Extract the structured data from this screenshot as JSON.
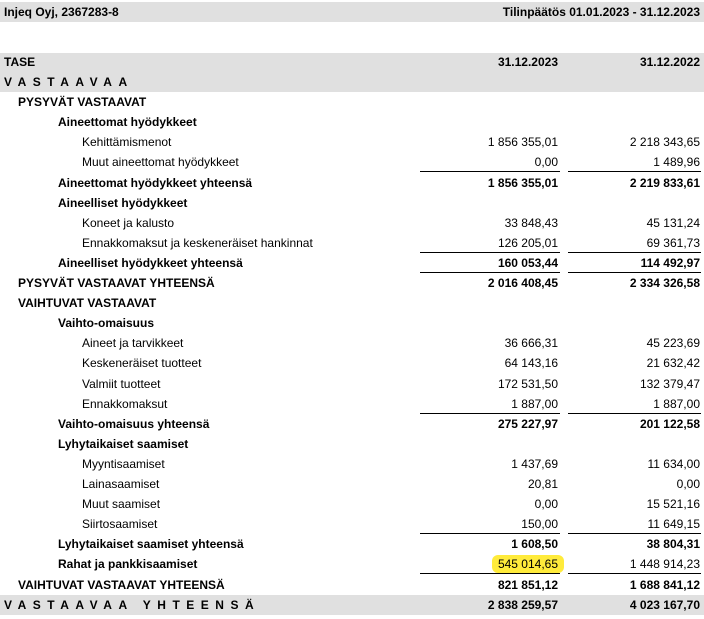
{
  "header": {
    "company": "Injeq Oyj, 2367283-8",
    "period": "Tilinpäätös 01.01.2023 - 31.12.2023"
  },
  "table": {
    "columns": [
      "TASE",
      "31.12.2023",
      "31.12.2022"
    ],
    "rows": [
      [
        "VASTAAVAA"
      ],
      [
        "PYSYVÄT VASTAAVAT"
      ],
      [
        "Aineettomat hyödykkeet"
      ],
      [
        "Kehittämismenot",
        "1 856 355,01",
        "2 218 343,65"
      ],
      [
        "Muut aineettomat hyödykkeet",
        "0,00",
        "1 489,96"
      ],
      [
        "Aineettomat hyödykkeet yhteensä",
        "1 856 355,01",
        "2 219 833,61"
      ],
      [
        "Aineelliset hyödykkeet"
      ],
      [
        "Koneet ja kalusto",
        "33 848,43",
        "45 131,24"
      ],
      [
        "Ennakkomaksut ja keskeneräiset hankinnat",
        "126 205,01",
        "69 361,73"
      ],
      [
        "Aineelliset hyödykkeet yhteensä",
        "160 053,44",
        "114 492,97"
      ],
      [
        "PYSYVÄT VASTAAVAT YHTEENSÄ",
        "2 016 408,45",
        "2 334 326,58"
      ],
      [
        "VAIHTUVAT VASTAAVAT"
      ],
      [
        "Vaihto-omaisuus"
      ],
      [
        "Aineet ja tarvikkeet",
        "36 666,31",
        "45 223,69"
      ],
      [
        "Keskeneräiset tuotteet",
        "64 143,16",
        "21 632,42"
      ],
      [
        "Valmiit tuotteet",
        "172 531,50",
        "132 379,47"
      ],
      [
        "Ennakkomaksut",
        "1 887,00",
        "1 887,00"
      ],
      [
        "Vaihto-omaisuus yhteensä",
        "275 227,97",
        "201 122,58"
      ],
      [
        "Lyhytaikaiset saamiset"
      ],
      [
        "Myyntisaamiset",
        "1 437,69",
        "11 634,00"
      ],
      [
        "Lainasaamiset",
        "20,81",
        "0,00"
      ],
      [
        "Muut saamiset",
        "0,00",
        "15 521,16"
      ],
      [
        "Siirtosaamiset",
        "150,00",
        "11 649,15"
      ],
      [
        "Lyhytaikaiset saamiset yhteensä",
        "1 608,50",
        "38 804,31"
      ],
      [
        "Rahat ja pankkisaamiset",
        "545 014,65",
        "1 448 914,23"
      ],
      [
        "VAIHTUVAT VASTAAVAT YHTEENSÄ",
        "821 851,12",
        "1 688 841,12"
      ],
      [
        "VASTAAVAA YHTEENSÄ",
        "2 838 259,57",
        "4 023 167,70"
      ]
    ]
  }
}
